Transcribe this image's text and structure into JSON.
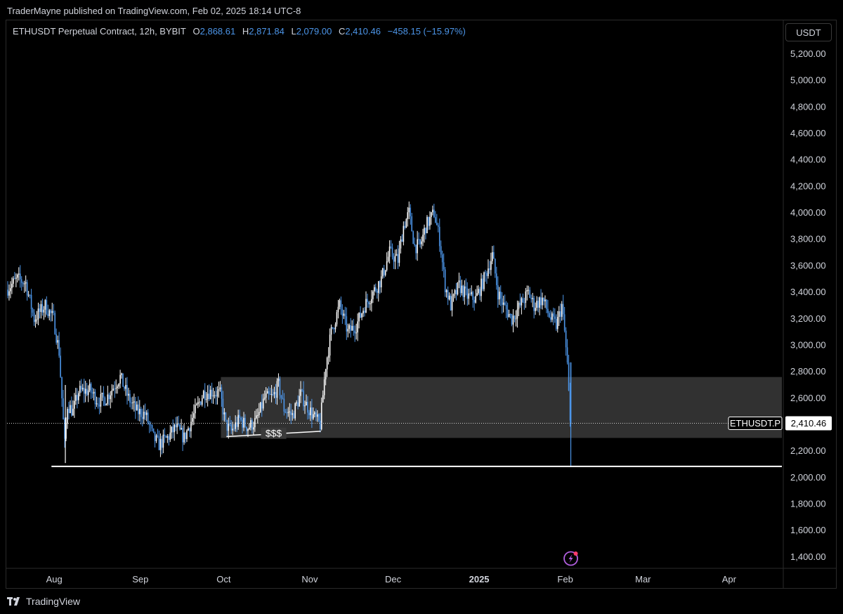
{
  "header": {
    "published": "TraderMayne published on TradingView.com, Feb 02, 2025 18:14 UTC-8"
  },
  "legend": {
    "symbol": "ETHUSDT Perpetual Contract, 12h, BYBIT",
    "open_label": "O",
    "open": "2,868.61",
    "high_label": "H",
    "high": "2,871.84",
    "low_label": "L",
    "low": "2,079.00",
    "close_label": "C",
    "close": "2,410.46",
    "change": "−458.15 (−15.97%)"
  },
  "currency": "USDT",
  "footer": {
    "brand": "TradingView"
  },
  "colors": {
    "background": "#000000",
    "candle_up": "#ffffff",
    "candle_down": "#4c95e8",
    "zone_fill": "#3a3a3a",
    "support_line": "#ffffff",
    "axis_text": "#d1d4dc"
  },
  "chart_data": {
    "type": "candlestick",
    "ylim": [
      1320,
      5290
    ],
    "y_ticks": [
      "5,200.00",
      "5,000.00",
      "4,800.00",
      "4,600.00",
      "4,400.00",
      "4,200.00",
      "4,000.00",
      "3,800.00",
      "3,600.00",
      "3,400.00",
      "3,200.00",
      "3,000.00",
      "2,800.00",
      "2,600.00",
      "2,400.00",
      "2,200.00",
      "2,000.00",
      "1,800.00",
      "1,600.00",
      "1,400.00"
    ],
    "y_tick_values": [
      5200,
      5000,
      4800,
      4600,
      4400,
      4200,
      4000,
      3800,
      3600,
      3400,
      3200,
      3000,
      2800,
      2600,
      2400,
      2200,
      2000,
      1800,
      1600,
      1400
    ],
    "x_range": [
      "2024-07-15",
      "2025-04-20"
    ],
    "x_ticks": [
      {
        "label": "Aug",
        "date": "2024-08-01",
        "bold": false
      },
      {
        "label": "Sep",
        "date": "2024-09-01",
        "bold": false
      },
      {
        "label": "Oct",
        "date": "2024-10-01",
        "bold": false
      },
      {
        "label": "Nov",
        "date": "2024-11-01",
        "bold": false
      },
      {
        "label": "Dec",
        "date": "2024-12-01",
        "bold": false
      },
      {
        "label": "2025",
        "date": "2025-01-01",
        "bold": true
      },
      {
        "label": "Feb",
        "date": "2025-02-01",
        "bold": false
      },
      {
        "label": "Mar",
        "date": "2025-03-01",
        "bold": false
      },
      {
        "label": "Apr",
        "date": "2025-04-01",
        "bold": false
      }
    ],
    "price_path": [
      [
        "2024-07-15",
        3420
      ],
      [
        "2024-07-19",
        3500
      ],
      [
        "2024-07-22",
        3470
      ],
      [
        "2024-07-25",
        3200
      ],
      [
        "2024-07-29",
        3300
      ],
      [
        "2024-08-01",
        3200
      ],
      [
        "2024-08-03",
        2950
      ],
      [
        "2024-08-05",
        2250
      ],
      [
        "2024-08-06",
        2550
      ],
      [
        "2024-08-08",
        2500
      ],
      [
        "2024-08-10",
        2650
      ],
      [
        "2024-08-14",
        2660
      ],
      [
        "2024-08-17",
        2580
      ],
      [
        "2024-08-20",
        2600
      ],
      [
        "2024-08-23",
        2700
      ],
      [
        "2024-08-25",
        2760
      ],
      [
        "2024-08-28",
        2600
      ],
      [
        "2024-08-31",
        2500
      ],
      [
        "2024-09-03",
        2480
      ],
      [
        "2024-09-06",
        2300
      ],
      [
        "2024-09-08",
        2250
      ],
      [
        "2024-09-11",
        2300
      ],
      [
        "2024-09-14",
        2380
      ],
      [
        "2024-09-17",
        2300
      ],
      [
        "2024-09-20",
        2450
      ],
      [
        "2024-09-24",
        2640
      ],
      [
        "2024-09-27",
        2650
      ],
      [
        "2024-09-30",
        2630
      ],
      [
        "2024-10-02",
        2400
      ],
      [
        "2024-10-04",
        2350
      ],
      [
        "2024-10-07",
        2440
      ],
      [
        "2024-10-10",
        2380
      ],
      [
        "2024-10-13",
        2430
      ],
      [
        "2024-10-16",
        2600
      ],
      [
        "2024-10-19",
        2610
      ],
      [
        "2024-10-21",
        2700
      ],
      [
        "2024-10-23",
        2520
      ],
      [
        "2024-10-26",
        2470
      ],
      [
        "2024-10-29",
        2630
      ],
      [
        "2024-10-31",
        2550
      ],
      [
        "2024-11-03",
        2450
      ],
      [
        "2024-11-05",
        2400
      ],
      [
        "2024-11-07",
        2850
      ],
      [
        "2024-11-09",
        3100
      ],
      [
        "2024-11-12",
        3300
      ],
      [
        "2024-11-15",
        3100
      ],
      [
        "2024-11-18",
        3150
      ],
      [
        "2024-11-21",
        3300
      ],
      [
        "2024-11-24",
        3400
      ],
      [
        "2024-11-27",
        3500
      ],
      [
        "2024-11-30",
        3700
      ],
      [
        "2024-12-03",
        3640
      ],
      [
        "2024-12-05",
        3900
      ],
      [
        "2024-12-07",
        4000
      ],
      [
        "2024-12-09",
        3750
      ],
      [
        "2024-12-11",
        3750
      ],
      [
        "2024-12-13",
        3900
      ],
      [
        "2024-12-16",
        4000
      ],
      [
        "2024-12-18",
        3800
      ],
      [
        "2024-12-20",
        3450
      ],
      [
        "2024-12-22",
        3300
      ],
      [
        "2024-12-25",
        3450
      ],
      [
        "2024-12-28",
        3370
      ],
      [
        "2024-12-31",
        3350
      ],
      [
        "2025-01-03",
        3500
      ],
      [
        "2025-01-06",
        3680
      ],
      [
        "2025-01-08",
        3400
      ],
      [
        "2025-01-10",
        3300
      ],
      [
        "2025-01-13",
        3200
      ],
      [
        "2025-01-16",
        3300
      ],
      [
        "2025-01-19",
        3400
      ],
      [
        "2025-01-21",
        3300
      ],
      [
        "2025-01-24",
        3350
      ],
      [
        "2025-01-27",
        3200
      ],
      [
        "2025-01-29",
        3150
      ],
      [
        "2025-01-31",
        3300
      ],
      [
        "2025-02-01",
        3100
      ],
      [
        "2025-02-02",
        2850
      ],
      [
        "2025-02-03",
        2410
      ]
    ],
    "zone": {
      "x_start": "2024-09-30",
      "x_end": "2025-04-20",
      "y_low": 2300,
      "y_high": 2760
    },
    "support_level": {
      "y": 2085,
      "x_start": "2024-07-31"
    },
    "current_price_line": {
      "y": 2410.46,
      "label": "ETHUSDT.P",
      "price_label": "2,410.46"
    },
    "annotation": {
      "text": "$$$",
      "x_start": "2024-10-02",
      "x_end": "2024-11-05",
      "y_start": 2310,
      "y_end": 2350
    },
    "marker": {
      "date": "2025-02-03",
      "y": 1400
    }
  }
}
